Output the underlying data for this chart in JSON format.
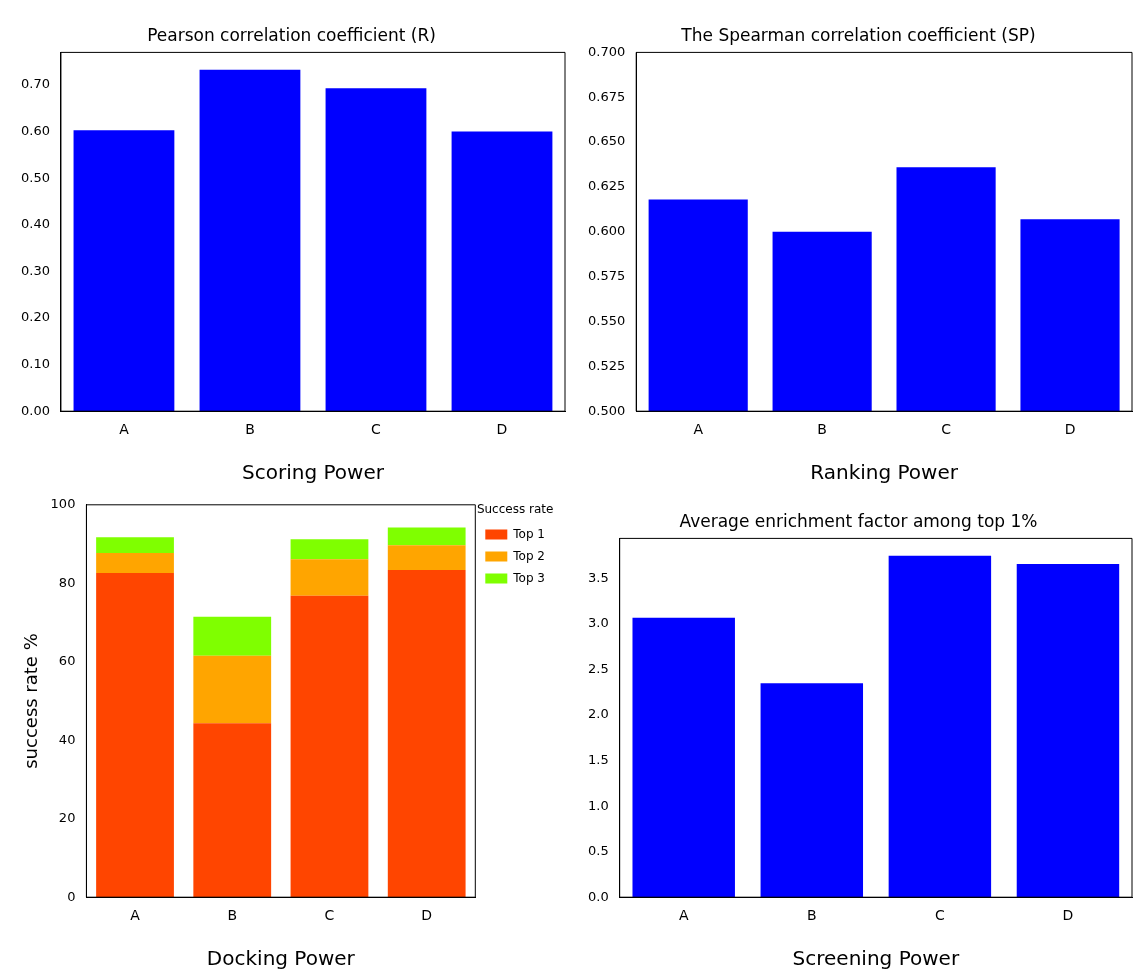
{
  "chart_data": [
    {
      "type": "bar",
      "title": "Pearson correlation coefficient (R)",
      "xlabel": "Scoring Power",
      "categories": [
        "A",
        "B",
        "C",
        "D"
      ],
      "values": [
        0.603,
        0.733,
        0.693,
        0.6
      ],
      "color": "#0000ff",
      "ylim": [
        0,
        0.77
      ],
      "yticks": [
        {
          "value": 0,
          "label": "0.00"
        },
        {
          "value": 0.1,
          "label": "0.10"
        },
        {
          "value": 0.2,
          "label": "0.20"
        },
        {
          "value": 0.3,
          "label": "0.30"
        },
        {
          "value": 0.4,
          "label": "0.40"
        },
        {
          "value": 0.5,
          "label": "0.50"
        },
        {
          "value": 0.6,
          "label": "0.60"
        },
        {
          "value": 0.7,
          "label": "0.70"
        }
      ],
      "grid": false
    },
    {
      "type": "bar",
      "title": "The Spearman correlation coefficient (SP)",
      "xlabel": "Ranking Power",
      "categories": [
        "A",
        "B",
        "C",
        "D"
      ],
      "values": [
        0.618,
        0.6,
        0.636,
        0.607
      ],
      "color": "#0000ff",
      "ylim": [
        0.5,
        0.7
      ],
      "yticks": [
        {
          "value": 0.5,
          "label": "0.500"
        },
        {
          "value": 0.525,
          "label": "0.525"
        },
        {
          "value": 0.55,
          "label": "0.550"
        },
        {
          "value": 0.575,
          "label": "0.575"
        },
        {
          "value": 0.6,
          "label": "0.600"
        },
        {
          "value": 0.625,
          "label": "0.625"
        },
        {
          "value": 0.65,
          "label": "0.650"
        },
        {
          "value": 0.675,
          "label": "0.675"
        },
        {
          "value": 0.7,
          "label": "0.700"
        }
      ],
      "grid": false
    },
    {
      "type": "bar",
      "stacked": true,
      "xlabel": "Docking Power",
      "ylabel": "success rate %",
      "legend_title": "Success rate",
      "legend": "top right",
      "categories": [
        "A",
        "B",
        "C",
        "D"
      ],
      "series": [
        {
          "name": "Top 1",
          "color": "#ff4500",
          "values": [
            82.6,
            44.3,
            76.8,
            83.4
          ]
        },
        {
          "name": "Top 2",
          "color": "#ffa500",
          "values": [
            5.1,
            17.2,
            9.3,
            6.3
          ]
        },
        {
          "name": "Top 3",
          "color": "#7fff00",
          "values": [
            4.0,
            10.0,
            5.1,
            4.5
          ]
        }
      ],
      "ylim": [
        0,
        100
      ],
      "yticks": [
        0,
        20,
        40,
        60,
        80,
        100
      ],
      "grid": false
    },
    {
      "type": "bar",
      "title": "Average enrichment factor among top 1%",
      "xlabel": "Screening Power",
      "categories": [
        "A",
        "B",
        "C",
        "D"
      ],
      "values": [
        3.07,
        2.35,
        3.75,
        3.66
      ],
      "color": "#0000ff",
      "ylim": [
        0,
        3.94
      ],
      "yticks": [
        {
          "value": 0,
          "label": "0.0"
        },
        {
          "value": 0.5,
          "label": "0.5"
        },
        {
          "value": 1,
          "label": "1.0"
        },
        {
          "value": 1.5,
          "label": "1.5"
        },
        {
          "value": 2,
          "label": "2.0"
        },
        {
          "value": 2.5,
          "label": "2.5"
        },
        {
          "value": 3,
          "label": "3.0"
        },
        {
          "value": 3.5,
          "label": "3.5"
        }
      ],
      "grid": false
    }
  ]
}
